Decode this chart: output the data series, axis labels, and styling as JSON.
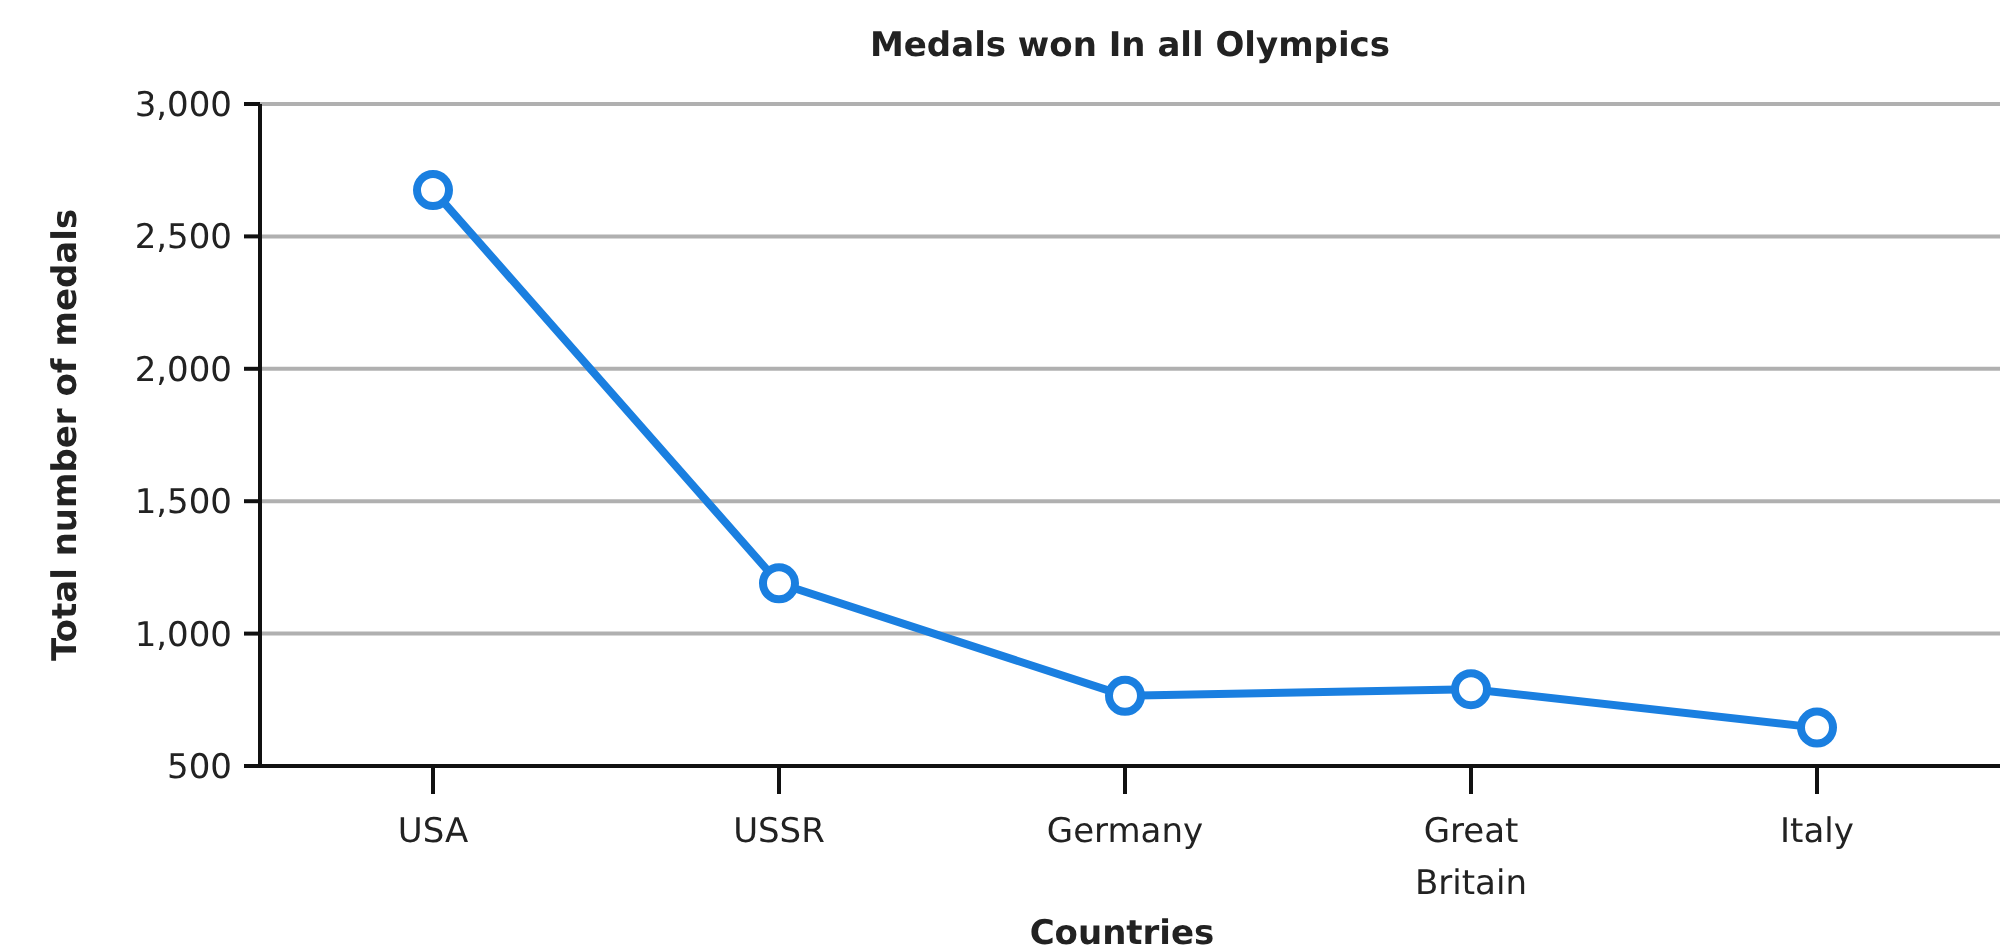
{
  "chart_data": {
    "type": "line",
    "title": "Medals won In all Olympics",
    "xlabel": "Countries",
    "ylabel": "Total number of medals",
    "categories": [
      "USA",
      "USSR",
      "Germany",
      "Great Britain",
      "Italy"
    ],
    "series": [
      {
        "color": "#1a7fe0",
        "values": [
          2675,
          1190,
          765,
          790,
          645
        ]
      }
    ],
    "ylim": [
      500,
      3000
    ],
    "yticks": [
      {
        "value": 500,
        "label": "500"
      },
      {
        "value": 1000,
        "label": "1,000"
      },
      {
        "value": 1500,
        "label": "1,500"
      },
      {
        "value": 2000,
        "label": "2,000"
      },
      {
        "value": 2500,
        "label": "2,500"
      },
      {
        "value": 3000,
        "label": "3,000"
      }
    ],
    "grid": "y",
    "marker": "circle",
    "line_style": "solid"
  }
}
